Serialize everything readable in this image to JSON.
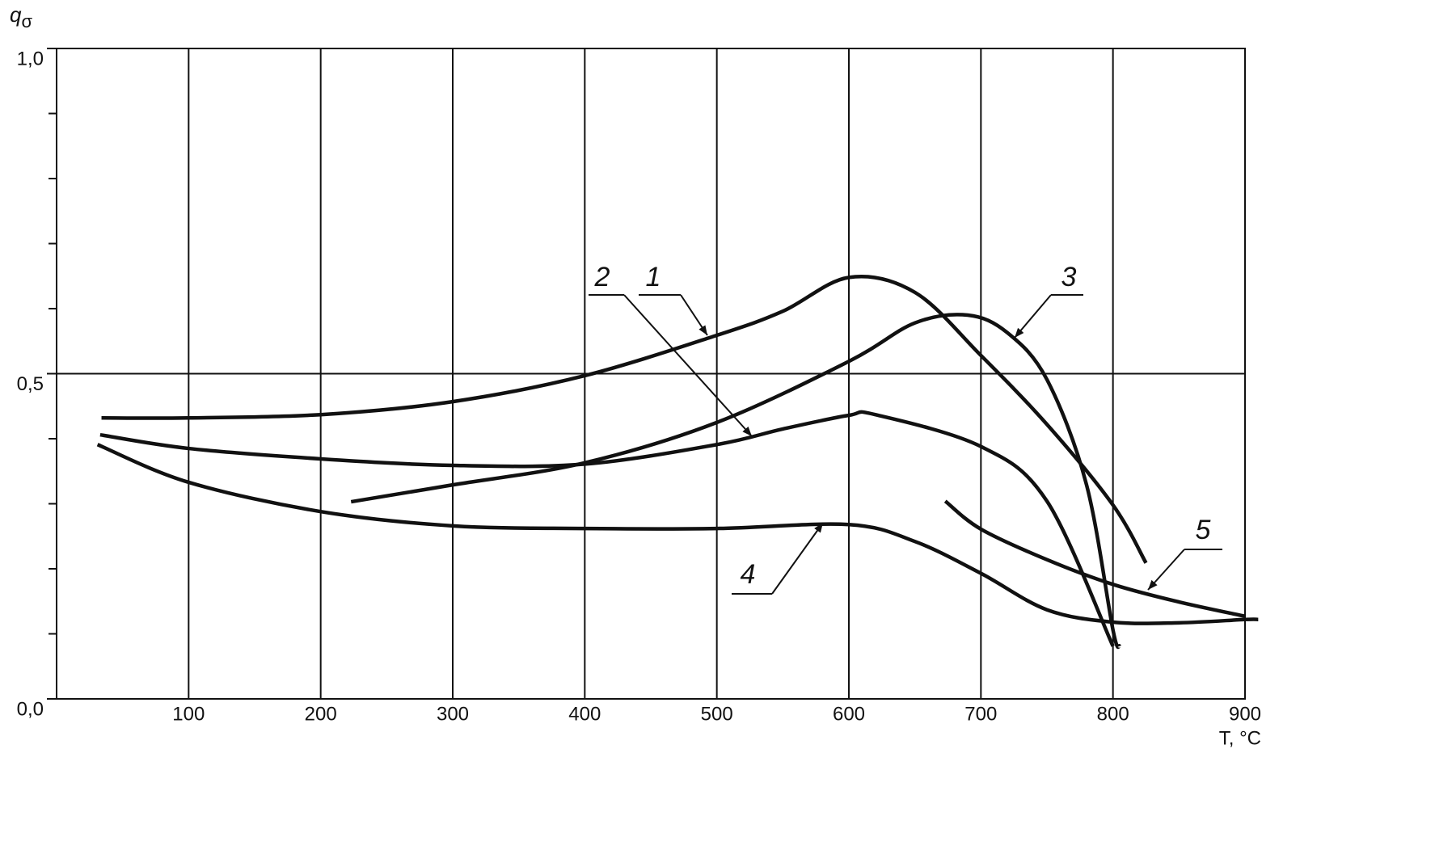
{
  "chart_data": {
    "type": "line",
    "ylabel": {
      "main": "q",
      "sub": "σ"
    },
    "xlabel": "T, °C",
    "xlim": [
      0,
      900
    ],
    "ylim": [
      0,
      1
    ],
    "xticks": [
      100,
      200,
      300,
      400,
      500,
      600,
      700,
      800,
      900
    ],
    "yticks": [
      {
        "value": 0,
        "label": "0,0"
      },
      {
        "value": 0.5,
        "label": "0,5"
      },
      {
        "value": 1,
        "label": "1,0"
      }
    ],
    "yminor_ticks": [
      0.1,
      0.2,
      0.3,
      0.4,
      0.6,
      0.7,
      0.8,
      0.9
    ],
    "grid": true,
    "series": [
      {
        "name": "1",
        "color": "#111111",
        "x": [
          34,
          100,
          200,
          300,
          400,
          500,
          550,
          600,
          650,
          700,
          750,
          800,
          825
        ],
        "values": [
          0.432,
          0.432,
          0.437,
          0.457,
          0.497,
          0.559,
          0.596,
          0.648,
          0.625,
          0.528,
          0.422,
          0.298,
          0.209
        ]
      },
      {
        "name": "2",
        "color": "#111111",
        "x": [
          33,
          100,
          200,
          300,
          400,
          500,
          550,
          600,
          620,
          700,
          750,
          800
        ],
        "values": [
          0.406,
          0.385,
          0.369,
          0.359,
          0.361,
          0.391,
          0.415,
          0.436,
          0.437,
          0.388,
          0.304,
          0.081
        ]
      },
      {
        "name": "3",
        "color": "#111111",
        "x": [
          223,
          300,
          400,
          500,
          600,
          650,
          690,
          720,
          750,
          780,
          800,
          805
        ],
        "values": [
          0.303,
          0.329,
          0.363,
          0.425,
          0.519,
          0.578,
          0.59,
          0.563,
          0.491,
          0.329,
          0.106,
          0.081
        ]
      },
      {
        "name": "4",
        "color": "#111111",
        "x": [
          31,
          100,
          200,
          300,
          400,
          500,
          600,
          650,
          700,
          750,
          800,
          850,
          900,
          910
        ],
        "values": [
          0.391,
          0.333,
          0.288,
          0.266,
          0.262,
          0.262,
          0.268,
          0.242,
          0.193,
          0.137,
          0.118,
          0.117,
          0.122,
          0.122
        ]
      },
      {
        "name": "5",
        "color": "#111111",
        "x": [
          673,
          700,
          750,
          800,
          850,
          900
        ],
        "values": [
          0.304,
          0.261,
          0.214,
          0.176,
          0.149,
          0.127
        ]
      }
    ]
  }
}
